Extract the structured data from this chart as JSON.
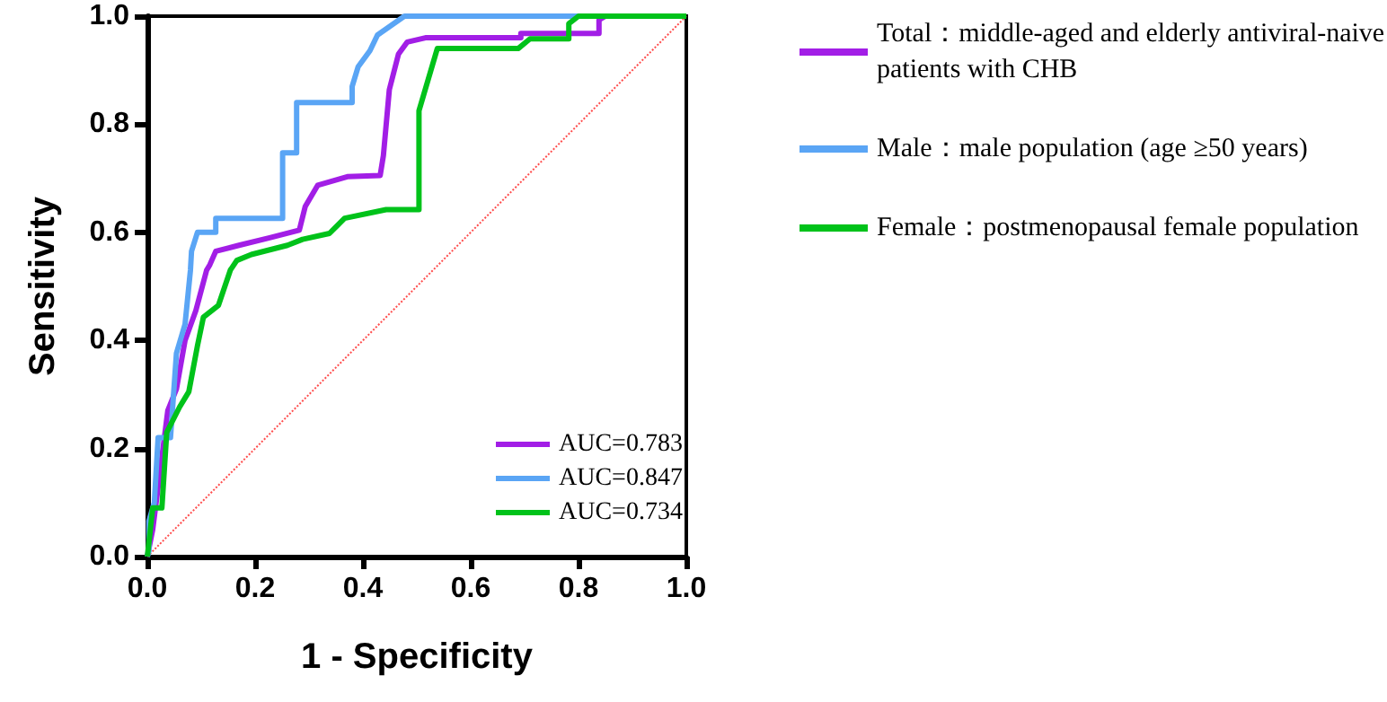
{
  "chart_data": {
    "type": "line",
    "xlabel": "1 - Specificity",
    "ylabel": "Sensitivity",
    "xlim": [
      0,
      1
    ],
    "ylim": [
      0,
      1
    ],
    "xticks": [
      {
        "value": 0,
        "label": "0.0"
      },
      {
        "value": 0.2,
        "label": "0.2"
      },
      {
        "value": 0.4,
        "label": "0.4"
      },
      {
        "value": 0.6,
        "label": "0.6"
      },
      {
        "value": 0.8,
        "label": "0.8"
      },
      {
        "value": 1,
        "label": "1.0"
      }
    ],
    "yticks": [
      {
        "value": 0,
        "label": "0.0"
      },
      {
        "value": 0.2,
        "label": "0.2"
      },
      {
        "value": 0.4,
        "label": "0.4"
      },
      {
        "value": 0.6,
        "label": "0.6"
      },
      {
        "value": 0.8,
        "label": "0.8"
      },
      {
        "value": 1,
        "label": "1.0"
      }
    ],
    "grid": false,
    "legend": "right",
    "marker": "none",
    "line_style": "solid",
    "series": [
      {
        "name": "Total：middle-aged and elderly antiviral-naive patients with CHB",
        "color": "#a21ee6",
        "x": [
          0,
          0.01,
          0.038,
          0.054,
          0.07,
          0.09,
          0.11,
          0.116,
          0.127,
          0.17,
          0.227,
          0.282,
          0.293,
          0.316,
          0.371,
          0.432,
          0.438,
          0.449,
          0.466,
          0.482,
          0.516,
          0.693,
          0.693,
          0.838,
          0.838,
          0.85,
          1
        ],
        "values": [
          0,
          0.05,
          0.27,
          0.31,
          0.4,
          0.455,
          0.53,
          0.54,
          0.565,
          0.576,
          0.59,
          0.604,
          0.648,
          0.687,
          0.703,
          0.705,
          0.742,
          0.864,
          0.93,
          0.952,
          0.96,
          0.96,
          0.968,
          0.968,
          0.993,
          1,
          1
        ]
      },
      {
        "name": "Male：male population (age ≥50 years)",
        "color": "#5aa5f5",
        "x": [
          0,
          0.003,
          0.003,
          0.013,
          0.02,
          0.043,
          0.054,
          0.07,
          0.08,
          0.082,
          0.093,
          0.127,
          0.127,
          0.251,
          0.251,
          0.277,
          0.277,
          0.38,
          0.38,
          0.391,
          0.413,
          0.427,
          0.477,
          1
        ],
        "values": [
          0,
          0.01,
          0.066,
          0.1,
          0.22,
          0.22,
          0.376,
          0.43,
          0.53,
          0.565,
          0.6,
          0.6,
          0.626,
          0.626,
          0.747,
          0.747,
          0.84,
          0.84,
          0.87,
          0.906,
          0.936,
          0.965,
          1,
          1
        ]
      },
      {
        "name": "Female：postmenopausal female population",
        "color": "#00c21a",
        "x": [
          0,
          0.01,
          0.027,
          0.036,
          0.06,
          0.077,
          0.093,
          0.104,
          0.132,
          0.154,
          0.166,
          0.193,
          0.26,
          0.288,
          0.338,
          0.366,
          0.443,
          0.504,
          0.504,
          0.538,
          0.688,
          0.71,
          0.782,
          0.782,
          0.8,
          1
        ],
        "values": [
          0,
          0.09,
          0.09,
          0.23,
          0.277,
          0.305,
          0.39,
          0.443,
          0.465,
          0.53,
          0.548,
          0.559,
          0.576,
          0.587,
          0.598,
          0.626,
          0.642,
          0.642,
          0.825,
          0.94,
          0.94,
          0.958,
          0.958,
          0.986,
          1,
          1
        ]
      },
      {
        "color": "#ff4d4d",
        "line_style": "dotted",
        "x": [
          0,
          1
        ],
        "values": [
          0,
          1
        ]
      }
    ],
    "annotations": [
      "AUC=0.783",
      "AUC=0.847",
      "AUC=0.734"
    ]
  }
}
